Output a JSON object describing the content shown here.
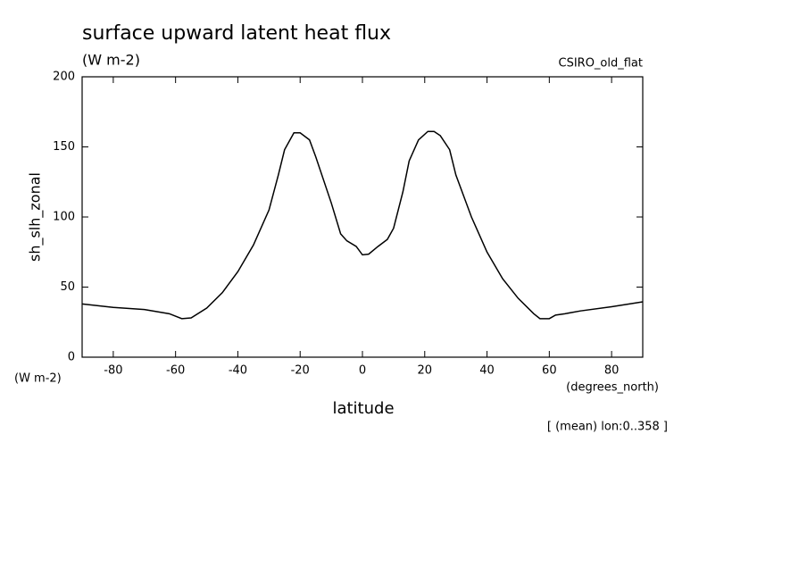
{
  "chart_data": {
    "type": "line",
    "title": "surface upward latent heat flux",
    "subtitle": "(W m-2)",
    "dataset": "CSIRO_old_flat",
    "y_label": "sh_slh_zonal",
    "y_units": "(W m-2)",
    "x_units": "(degrees_north)",
    "x_label": "latitude",
    "note": "[ (mean) lon:0..358 ]",
    "color": "#000000",
    "x": [
      -90,
      -80,
      -70,
      -62,
      -58,
      -55,
      -50,
      -45,
      -40,
      -35,
      -30,
      -27,
      -25,
      -22,
      -20,
      -17,
      -15,
      -10,
      -7,
      -5,
      -2,
      0,
      2,
      5,
      8,
      10,
      13,
      15,
      18,
      21,
      23,
      25,
      28,
      30,
      35,
      40,
      45,
      50,
      55,
      57,
      60,
      62,
      65,
      70,
      80,
      90
    ],
    "values": [
      38,
      35.5,
      34,
      31,
      27.5,
      28,
      35,
      46,
      61,
      80,
      105,
      130,
      148,
      160,
      160,
      155,
      143,
      110,
      88,
      83,
      79,
      73,
      73.5,
      79,
      84,
      92,
      118,
      140,
      155,
      161,
      161,
      158,
      148,
      130,
      100,
      75,
      56,
      42,
      31,
      27.5,
      27.5,
      30,
      31,
      33,
      36,
      39.5
    ],
    "xlim": [
      -90,
      90
    ],
    "xticks": [
      -80,
      -60,
      -40,
      -20,
      0,
      20,
      40,
      60,
      80
    ],
    "ylim": [
      0,
      200
    ],
    "yticks": [
      0,
      50,
      100,
      150,
      200
    ]
  }
}
